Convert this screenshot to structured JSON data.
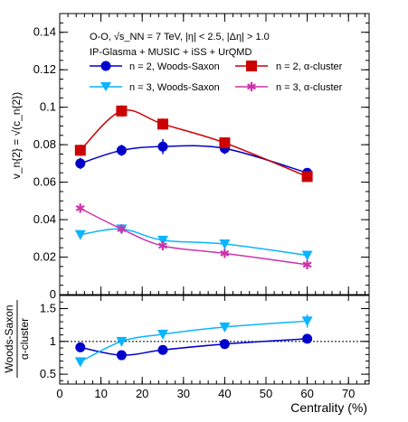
{
  "chart_data": [
    {
      "type": "line",
      "annotation_lines": [
        "O-O,  √s_NN = 7 TeV, |η| < 2.5, |Δη| > 1.0",
        "IP-Glasma +  MUSIC + iSS + UrQMD"
      ],
      "ylabel": "v_n{2} = √(c_n{2})",
      "ylim": [
        0,
        0.15
      ],
      "yticks": [
        "0",
        "0.02",
        "0.04",
        "0.06",
        "0.08",
        "0.1",
        "0.12",
        "0.14"
      ],
      "grid": false,
      "legend_position": "top",
      "series": [
        {
          "name": "n = 2, Woods-Saxon",
          "color": "#0000cc",
          "marker": "circle",
          "x": [
            5,
            15,
            25,
            40,
            60
          ],
          "y": [
            0.07,
            0.077,
            0.079,
            0.078,
            0.065
          ],
          "err": [
            0.003,
            0.003,
            0.004,
            0.003,
            0.002
          ]
        },
        {
          "name": "n = 2,   α-cluster",
          "color": "#cc0000",
          "marker": "square",
          "x": [
            5,
            15,
            25,
            40,
            60
          ],
          "y": [
            0.077,
            0.098,
            0.091,
            0.081,
            0.063
          ],
          "err": [
            0.003,
            0.003,
            0.003,
            0.002,
            0.002
          ]
        },
        {
          "name": "n = 3, Woods-Saxon",
          "color": "#0ab4ff",
          "marker": "triangle-down",
          "x": [
            5,
            15,
            25,
            40,
            60
          ],
          "y": [
            0.032,
            0.035,
            0.029,
            0.027,
            0.021
          ],
          "err": [
            0.002,
            0.002,
            0.002,
            0.002,
            0.002
          ]
        },
        {
          "name": "n = 3,   α-cluster",
          "color": "#cc33aa",
          "marker": "star",
          "x": [
            5,
            15,
            25,
            40,
            60
          ],
          "y": [
            0.046,
            0.035,
            0.026,
            0.022,
            0.016
          ],
          "err": [
            0.002,
            0.002,
            0.002,
            0.002,
            0.002
          ]
        }
      ]
    },
    {
      "type": "line",
      "ylabel_top": "Woods-Saxon",
      "ylabel_bottom": "α-cluster",
      "xlabel": "Centrality (%)",
      "xlim": [
        0,
        75
      ],
      "xticks": [
        "0",
        "10",
        "20",
        "30",
        "40",
        "50",
        "60",
        "70"
      ],
      "ylim": [
        0.35,
        1.7
      ],
      "yticks": [
        "0.5",
        "1",
        "1.5"
      ],
      "reference_line": 1,
      "series": [
        {
          "name": "n = 2",
          "color": "#0000cc",
          "marker": "circle",
          "x": [
            5,
            15,
            25,
            40,
            60
          ],
          "y": [
            0.91,
            0.79,
            0.87,
            0.96,
            1.04
          ],
          "err": [
            0.04,
            0.03,
            0.04,
            0.03,
            0.03
          ]
        },
        {
          "name": "n = 3",
          "color": "#0ab4ff",
          "marker": "triangle-down",
          "x": [
            5,
            15,
            25,
            40,
            60
          ],
          "y": [
            0.69,
            1.0,
            1.11,
            1.22,
            1.31
          ],
          "err": [
            0.04,
            0.05,
            0.06,
            0.07,
            0.1
          ]
        }
      ]
    }
  ]
}
